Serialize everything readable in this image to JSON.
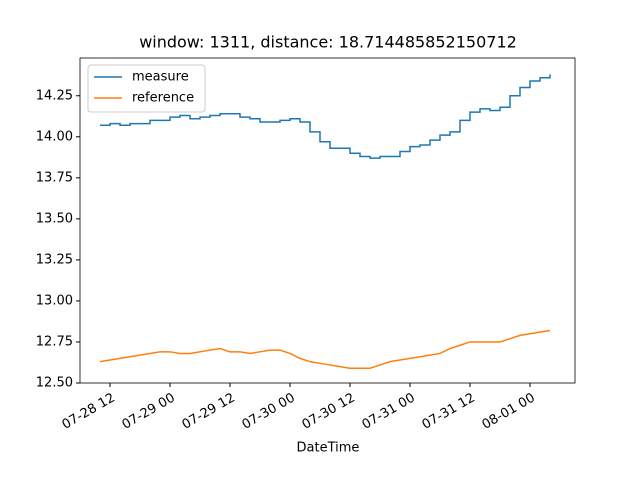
{
  "chart_data": {
    "type": "line",
    "title": "window: 1311, distance: 18.714485852150712",
    "x_label": "DateTime",
    "x": [
      "07-28 10",
      "07-28 12",
      "07-28 14",
      "07-28 16",
      "07-28 18",
      "07-28 20",
      "07-28 22",
      "07-29 00",
      "07-29 02",
      "07-29 04",
      "07-29 06",
      "07-29 08",
      "07-29 10",
      "07-29 12",
      "07-29 14",
      "07-29 16",
      "07-29 18",
      "07-29 20",
      "07-29 22",
      "07-30 00",
      "07-30 02",
      "07-30 04",
      "07-30 06",
      "07-30 08",
      "07-30 10",
      "07-30 12",
      "07-30 14",
      "07-30 16",
      "07-30 18",
      "07-30 20",
      "07-30 22",
      "07-31 00",
      "07-31 02",
      "07-31 04",
      "07-31 06",
      "07-31 08",
      "07-31 10",
      "07-31 12",
      "07-31 14",
      "07-31 16",
      "07-31 18",
      "07-31 20",
      "07-31 22",
      "08-01 00",
      "08-01 02",
      "08-01 04"
    ],
    "series": [
      {
        "name": "measure",
        "color": "#1f77b4",
        "drawstyle": "steps",
        "values": [
          14.07,
          14.08,
          14.07,
          14.08,
          14.08,
          14.1,
          14.1,
          14.12,
          14.13,
          14.11,
          14.12,
          14.13,
          14.14,
          14.14,
          14.12,
          14.11,
          14.09,
          14.09,
          14.1,
          14.11,
          14.09,
          14.03,
          13.97,
          13.93,
          13.93,
          13.9,
          13.88,
          13.87,
          13.88,
          13.88,
          13.91,
          13.94,
          13.95,
          13.98,
          14.01,
          14.03,
          14.1,
          14.15,
          14.17,
          14.16,
          14.18,
          14.25,
          14.3,
          14.34,
          14.36,
          14.38
        ]
      },
      {
        "name": "reference",
        "color": "#ff7f0e",
        "values": [
          12.63,
          12.64,
          12.65,
          12.66,
          12.67,
          12.68,
          12.69,
          12.69,
          12.68,
          12.68,
          12.69,
          12.7,
          12.71,
          12.69,
          12.69,
          12.68,
          12.69,
          12.7,
          12.7,
          12.68,
          12.65,
          12.63,
          12.62,
          12.61,
          12.6,
          12.59,
          12.59,
          12.59,
          12.61,
          12.63,
          12.64,
          12.65,
          12.66,
          12.67,
          12.68,
          12.71,
          12.73,
          12.75,
          12.75,
          12.75,
          12.75,
          12.77,
          12.79,
          12.8,
          12.81,
          12.82
        ]
      }
    ],
    "xlim": [
      "07-28 06",
      "08-01 09"
    ],
    "xticks": [
      "07-28 12",
      "07-29 00",
      "07-29 12",
      "07-30 00",
      "07-30 12",
      "07-31 00",
      "07-31 12",
      "08-01 00"
    ],
    "ylim": [
      12.5,
      14.48
    ],
    "yticks": [
      {
        "value": 12.5,
        "label": "12.50"
      },
      12.75,
      {
        "value": 13,
        "label": "13.00"
      },
      13.25,
      {
        "value": 13.5,
        "label": "13.50"
      },
      13.75,
      {
        "value": 14,
        "label": "14.00"
      },
      14.25
    ],
    "legend": "upper left"
  }
}
